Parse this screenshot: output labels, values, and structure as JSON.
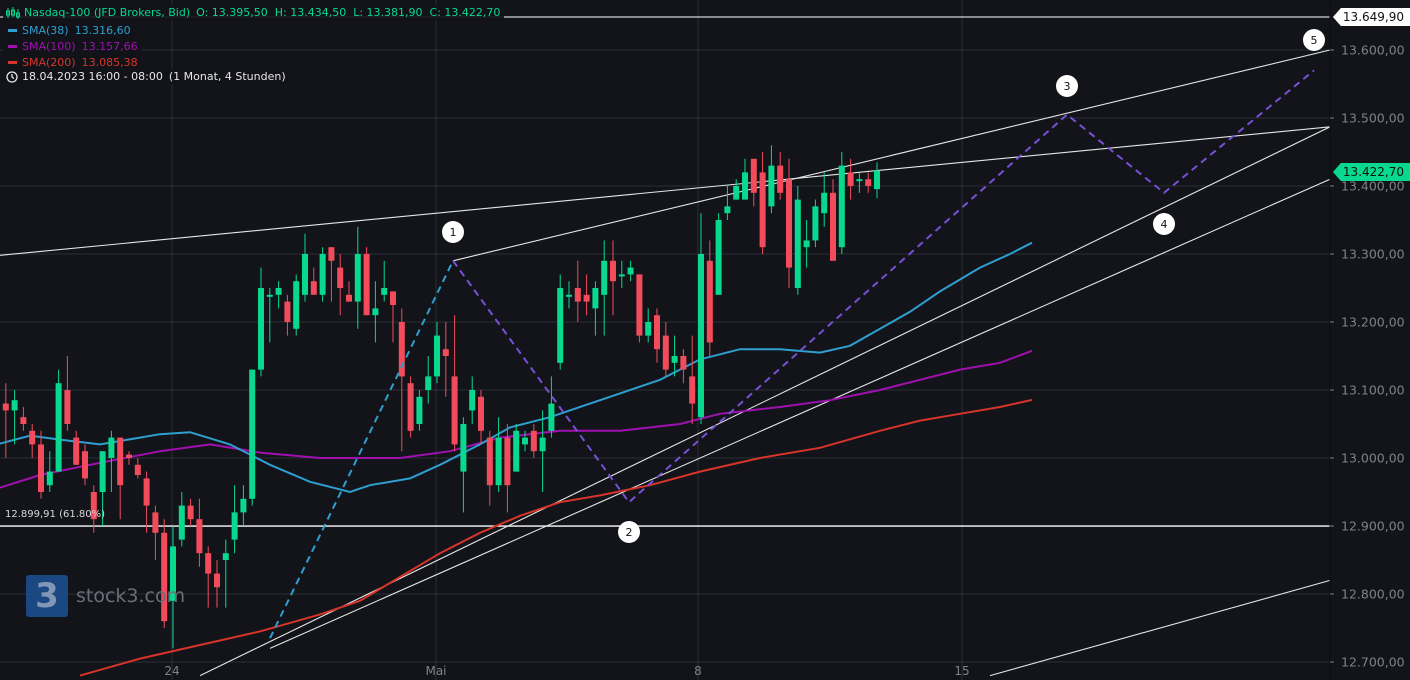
{
  "legend": {
    "instrument": "Nasdaq-100 (JFD Brokers, Bid)",
    "ohlc": "O: 13.395,50  H: 13.434,50  L: 13.381,90  C: 13.422,70",
    "indicators": [
      {
        "label": "SMA(38)",
        "value": "13.316,60",
        "color": "#2e9fd0"
      },
      {
        "label": "SMA(100)",
        "value": "13.157,66",
        "color": "#a010b0"
      },
      {
        "label": "SMA(200)",
        "value": "13.085,38",
        "color": "#d7342a"
      }
    ],
    "time_range": "18.04.2023 16:00 - 08:00",
    "period": "(1 Monat, 4 Stunden)"
  },
  "price_tags": {
    "high": "13.649,90",
    "last": "13.422,70"
  },
  "fib_label": "12.899,91 (61.80%)",
  "watermark": "stock3.com",
  "colors": {
    "background": "#121419",
    "grid": "#2b2e35",
    "up": "#08d98f",
    "down": "#f24c5c",
    "sma38": "#2e9fd0",
    "sma100": "#a010b0",
    "sma200": "#d7342a",
    "wave": "#7a4fd6",
    "wave_up": "#2e9fd0",
    "lines": "#e6e6e6",
    "axis_text": "#7d818a",
    "last_price": "#08d98f"
  },
  "chart_data": {
    "type": "candlestick",
    "title": "Nasdaq-100 (JFD Brokers, Bid) 4H",
    "ylim": [
      12680,
      13680
    ],
    "y_ticks": [
      "13.600,00",
      "13.500,00",
      "13.400,00",
      "13.300,00",
      "13.200,00",
      "13.100,00",
      "13.000,00",
      "12.900,00",
      "12.800,00",
      "12.700,00"
    ],
    "y_tick_values": [
      13600,
      13500,
      13400,
      13300,
      13200,
      13100,
      13000,
      12900,
      12800,
      12700
    ],
    "x_ticks": [
      {
        "label": "24",
        "x": 172
      },
      {
        "label": "Mai",
        "x": 436
      },
      {
        "label": "8",
        "x": 698
      },
      {
        "label": "15",
        "x": 962
      }
    ],
    "bar_spacing": 8.8,
    "first_bar_x": -3,
    "candles": [
      [
        13130,
        13150,
        13180,
        13060
      ],
      [
        13080,
        13070,
        13110,
        13000
      ],
      [
        13070,
        13085,
        13100,
        13020
      ],
      [
        13060,
        13050,
        13075,
        13040
      ],
      [
        13040,
        13020,
        13050,
        13000
      ],
      [
        13020,
        12950,
        13040,
        12940
      ],
      [
        12960,
        12980,
        13010,
        12950
      ],
      [
        12980,
        13110,
        13130,
        12980
      ],
      [
        13100,
        13050,
        13150,
        13040
      ],
      [
        13030,
        12990,
        13040,
        12990
      ],
      [
        13010,
        12970,
        13020,
        12960
      ],
      [
        12950,
        12910,
        12960,
        12890
      ],
      [
        12950,
        13010,
        13000,
        12900
      ],
      [
        13000,
        13030,
        13040,
        12950
      ],
      [
        13030,
        12960,
        13030,
        12910
      ],
      [
        13005,
        13000,
        13010,
        12990
      ],
      [
        12990,
        12975,
        13000,
        12970
      ],
      [
        12970,
        12930,
        12980,
        12890
      ],
      [
        12920,
        12890,
        12930,
        12850
      ],
      [
        12890,
        12760,
        12910,
        12750
      ],
      [
        12790,
        12870,
        12900,
        12720
      ],
      [
        12880,
        12930,
        12950,
        12870
      ],
      [
        12930,
        12910,
        12940,
        12900
      ],
      [
        12910,
        12860,
        12940,
        12840
      ],
      [
        12860,
        12830,
        12870,
        12780
      ],
      [
        12830,
        12810,
        12850,
        12780
      ],
      [
        12850,
        12860,
        12880,
        12780
      ],
      [
        12880,
        12920,
        12960,
        12860
      ],
      [
        12920,
        12940,
        12960,
        12900
      ],
      [
        12940,
        13130,
        13120,
        12930
      ],
      [
        13130,
        13250,
        13280,
        13120
      ],
      [
        13240,
        13240,
        13250,
        13170
      ],
      [
        13240,
        13250,
        13260,
        13220
      ],
      [
        13230,
        13200,
        13240,
        13180
      ],
      [
        13190,
        13260,
        13270,
        13180
      ],
      [
        13240,
        13300,
        13330,
        13230
      ],
      [
        13260,
        13240,
        13280,
        13250
      ],
      [
        13240,
        13300,
        13310,
        13230
      ],
      [
        13310,
        13290,
        13290,
        13230
      ],
      [
        13280,
        13250,
        13300,
        13210
      ],
      [
        13240,
        13230,
        13260,
        13250
      ],
      [
        13230,
        13300,
        13340,
        13190
      ],
      [
        13300,
        13210,
        13310,
        13210
      ],
      [
        13210,
        13220,
        13260,
        13170
      ],
      [
        13240,
        13250,
        13290,
        13230
      ],
      [
        13245,
        13225,
        13240,
        13170
      ],
      [
        13200,
        13120,
        13220,
        13010
      ],
      [
        13110,
        13040,
        13120,
        13030
      ],
      [
        13050,
        13090,
        13100,
        13040
      ],
      [
        13100,
        13120,
        13150,
        13080
      ],
      [
        13120,
        13180,
        13200,
        13110
      ],
      [
        13160,
        13150,
        13200,
        13090
      ],
      [
        13120,
        13020,
        13210,
        13010
      ],
      [
        12980,
        13050,
        13060,
        12920
      ],
      [
        13070,
        13100,
        13120,
        13050
      ],
      [
        13090,
        13040,
        13100,
        13020
      ],
      [
        13030,
        12960,
        13040,
        12930
      ],
      [
        12960,
        13030,
        13060,
        12950
      ],
      [
        13030,
        12960,
        13050,
        12920
      ],
      [
        12980,
        13040,
        13050,
        12980
      ],
      [
        13020,
        13030,
        13040,
        13010
      ],
      [
        13040,
        13010,
        13050,
        13000
      ],
      [
        13010,
        13030,
        13070,
        12950
      ],
      [
        13040,
        13080,
        13120,
        13030
      ],
      [
        13140,
        13250,
        13270,
        13130
      ],
      [
        13240,
        13240,
        13260,
        13220
      ],
      [
        13250,
        13230,
        13290,
        13200
      ],
      [
        13240,
        13230,
        13270,
        13210
      ],
      [
        13220,
        13250,
        13260,
        13180
      ],
      [
        13240,
        13290,
        13320,
        13180
      ],
      [
        13290,
        13260,
        13320,
        13210
      ],
      [
        13270,
        13270,
        13290,
        13250
      ],
      [
        13270,
        13280,
        13290,
        13260
      ],
      [
        13270,
        13180,
        13270,
        13170
      ],
      [
        13180,
        13200,
        13220,
        13170
      ],
      [
        13210,
        13160,
        13220,
        13140
      ],
      [
        13180,
        13130,
        13200,
        13120
      ],
      [
        13140,
        13150,
        13180,
        13120
      ],
      [
        13150,
        13130,
        13160,
        13110
      ],
      [
        13120,
        13080,
        13180,
        13050
      ],
      [
        13060,
        13300,
        13360,
        13050
      ],
      [
        13290,
        13170,
        13320,
        13150
      ],
      [
        13240,
        13350,
        13360,
        13240
      ],
      [
        13360,
        13370,
        13400,
        13350
      ],
      [
        13380,
        13400,
        13410,
        13380
      ],
      [
        13380,
        13420,
        13440,
        13380
      ],
      [
        13440,
        13390,
        13440,
        13370
      ],
      [
        13420,
        13310,
        13450,
        13300
      ],
      [
        13370,
        13430,
        13460,
        13360
      ],
      [
        13430,
        13390,
        13450,
        13380
      ],
      [
        13410,
        13280,
        13440,
        13250
      ],
      [
        13250,
        13380,
        13400,
        13240
      ],
      [
        13310,
        13320,
        13350,
        13280
      ],
      [
        13320,
        13370,
        13380,
        13310
      ],
      [
        13360,
        13390,
        13420,
        13340
      ],
      [
        13390,
        13290,
        13410,
        13290
      ],
      [
        13310,
        13430,
        13450,
        13300
      ],
      [
        13420,
        13400,
        13440,
        13380
      ],
      [
        13410,
        13410,
        13420,
        13390
      ],
      [
        13410,
        13400,
        13420,
        13390
      ],
      [
        13395.5,
        13422.7,
        13434.5,
        13381.9
      ]
    ],
    "sma38": [
      [
        -3,
        13020
      ],
      [
        30,
        13033
      ],
      [
        60,
        13027
      ],
      [
        100,
        13020
      ],
      [
        160,
        13035
      ],
      [
        190,
        13038
      ],
      [
        230,
        13020
      ],
      [
        270,
        12990
      ],
      [
        310,
        12965
      ],
      [
        350,
        12950
      ],
      [
        370,
        12960
      ],
      [
        410,
        12970
      ],
      [
        440,
        12990
      ],
      [
        480,
        13020
      ],
      [
        510,
        13045
      ],
      [
        550,
        13060
      ],
      [
        590,
        13080
      ],
      [
        620,
        13095
      ],
      [
        660,
        13115
      ],
      [
        700,
        13145
      ],
      [
        740,
        13160
      ],
      [
        780,
        13160
      ],
      [
        820,
        13155
      ],
      [
        850,
        13165
      ],
      [
        880,
        13190
      ],
      [
        910,
        13215
      ],
      [
        940,
        13245
      ],
      [
        980,
        13280
      ],
      [
        1010,
        13300
      ],
      [
        1032,
        13316.6
      ]
    ],
    "sma100": [
      [
        -3,
        12955
      ],
      [
        40,
        12975
      ],
      [
        90,
        12990
      ],
      [
        160,
        13010
      ],
      [
        210,
        13020
      ],
      [
        260,
        13008
      ],
      [
        320,
        13000
      ],
      [
        400,
        13000
      ],
      [
        450,
        13010
      ],
      [
        500,
        13030
      ],
      [
        560,
        13040
      ],
      [
        620,
        13040
      ],
      [
        680,
        13050
      ],
      [
        720,
        13065
      ],
      [
        780,
        13075
      ],
      [
        830,
        13085
      ],
      [
        880,
        13100
      ],
      [
        920,
        13115
      ],
      [
        960,
        13130
      ],
      [
        1000,
        13140
      ],
      [
        1032,
        13157.66
      ]
    ],
    "sma200": [
      [
        80,
        12680
      ],
      [
        140,
        12705
      ],
      [
        200,
        12725
      ],
      [
        260,
        12745
      ],
      [
        320,
        12770
      ],
      [
        360,
        12790
      ],
      [
        400,
        12825
      ],
      [
        440,
        12860
      ],
      [
        480,
        12890
      ],
      [
        520,
        12915
      ],
      [
        560,
        12935
      ],
      [
        600,
        12945
      ],
      [
        650,
        12960
      ],
      [
        700,
        12980
      ],
      [
        760,
        13000
      ],
      [
        820,
        13015
      ],
      [
        880,
        13040
      ],
      [
        920,
        13055
      ],
      [
        960,
        13065
      ],
      [
        1000,
        13075
      ],
      [
        1032,
        13085.38
      ]
    ],
    "wave_count": [
      {
        "label": "1",
        "x": 453,
        "y": 232,
        "price": 13290
      },
      {
        "label": "2",
        "x": 629,
        "y": 532,
        "price": 12935
      },
      {
        "label": "3",
        "x": 1067,
        "y": 86,
        "price": 13505
      },
      {
        "label": "4",
        "x": 1164,
        "y": 224,
        "price": 13390
      },
      {
        "label": "5",
        "x": 1314,
        "y": 40,
        "price": 13570
      }
    ],
    "wave_path_up": [
      [
        270,
        12735
      ],
      [
        453,
        13290
      ]
    ],
    "wave_path": [
      [
        453,
        13290
      ],
      [
        629,
        12935
      ],
      [
        1067,
        13505
      ],
      [
        1164,
        13390
      ],
      [
        1314,
        13570
      ]
    ],
    "trend_lines": [
      [
        [
          0,
          13298
        ],
        [
          1330,
          13487
        ]
      ],
      [
        [
          453,
          13290
        ],
        [
          1330,
          13600
        ]
      ],
      [
        [
          200,
          12680
        ],
        [
          1330,
          13487
        ]
      ],
      [
        [
          270,
          12720
        ],
        [
          1330,
          13410
        ]
      ],
      [
        [
          990,
          12680
        ],
        [
          1330,
          12820
        ]
      ]
    ],
    "fib_level": {
      "price": 12899.91,
      "label": "12.899,91 (61.80%)"
    },
    "last_price": 13422.7,
    "high_marker": 13649.9
  }
}
